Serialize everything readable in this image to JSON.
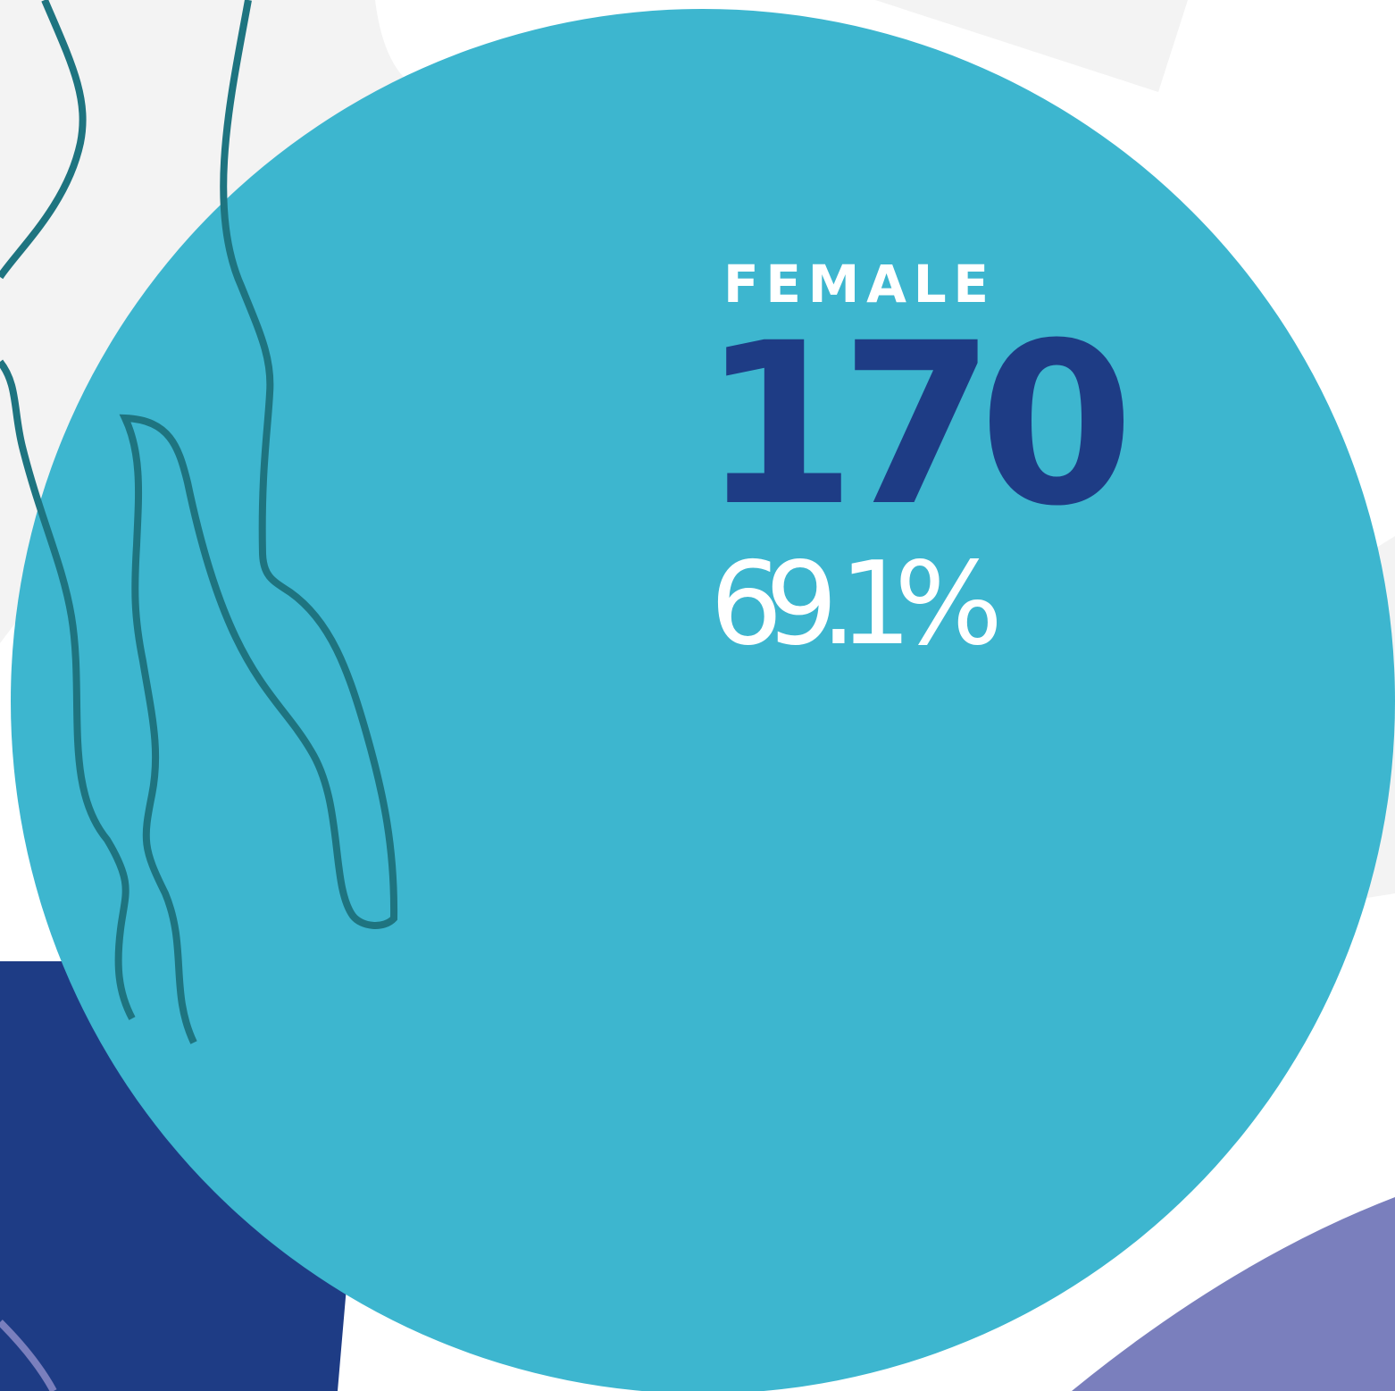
{
  "label": "FEMALE",
  "count": "170",
  "percent": "69.1%"
}
